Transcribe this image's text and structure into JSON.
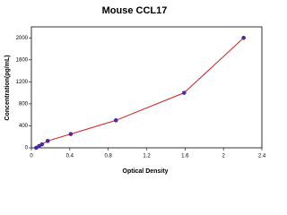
{
  "chart_data": {
    "type": "scatter",
    "title": "Mouse CCL17",
    "x_label": "Optical Density",
    "y_label": "Concentration(pg/mL)",
    "series": [
      {
        "x": [
          0.05,
          0.08,
          0.11,
          0.17,
          0.41,
          0.88,
          1.59,
          2.21
        ],
        "values": [
          0,
          31.25,
          62.5,
          125,
          250,
          500,
          1000,
          2000
        ],
        "color": "#4b2a9e",
        "line_color": "#cc2222"
      }
    ],
    "xlim": [
      0,
      2.4
    ],
    "xticks": [
      0,
      0.4,
      0.8,
      1.2,
      1.6,
      2.0,
      2.4
    ],
    "ylim": [
      0,
      2200
    ],
    "yticks": [
      0,
      400,
      800,
      1200,
      1600,
      2000
    ]
  }
}
